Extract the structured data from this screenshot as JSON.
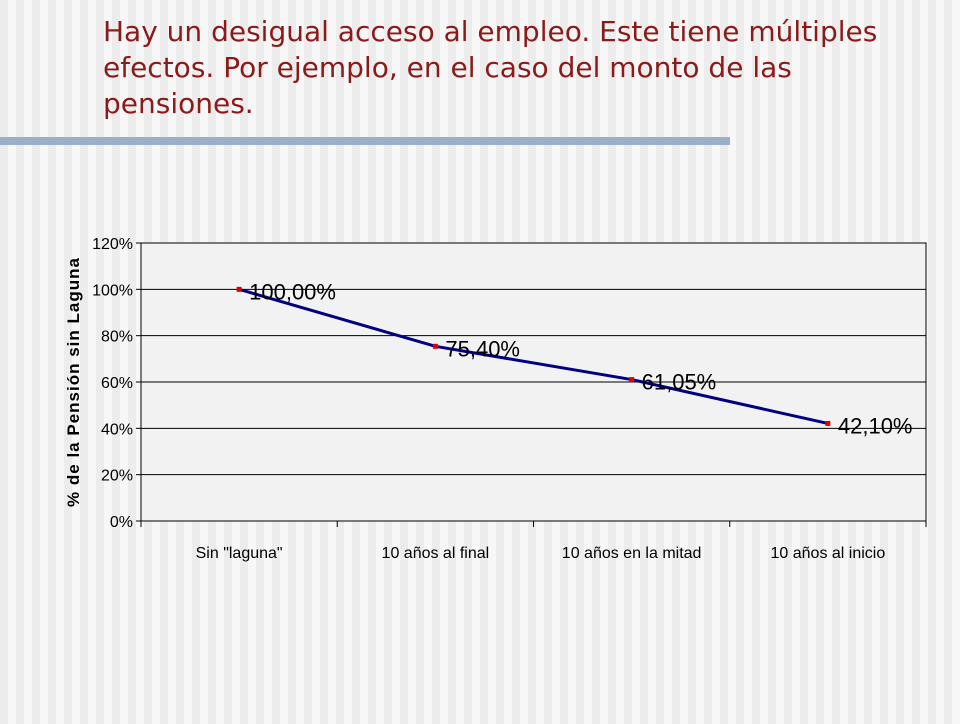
{
  "slide": {
    "title": "Hay un desigual acceso al empleo. Este tiene múltiples efectos. Por ejemplo, en el caso del monto de las pensiones."
  },
  "colors": {
    "title": "#8b1a1a",
    "underline": "#9bb0c8",
    "line": "#000080",
    "marker": "#e00000"
  },
  "chart_data": {
    "type": "line",
    "title": "",
    "xlabel": "",
    "ylabel": "% de la Pensión sin Laguna",
    "categories": [
      "Sin \"laguna\"",
      "10  años al final",
      "10 años en la mitad",
      "10 años al inicio"
    ],
    "series": [
      {
        "values": [
          100.0,
          75.4,
          61.05,
          42.1
        ]
      }
    ],
    "data_labels": [
      "100,00%",
      "75,40%",
      "61,05%",
      "42,10%"
    ],
    "yticks": [
      "0%",
      "20%",
      "40%",
      "60%",
      "80%",
      "100%",
      "120%"
    ],
    "ylim": [
      0,
      120
    ],
    "grid": true,
    "legend": "none"
  }
}
